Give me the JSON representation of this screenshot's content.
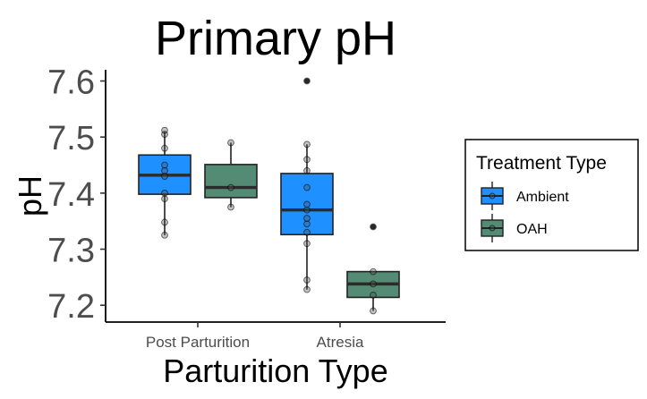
{
  "chart_data": {
    "type": "box",
    "title": "Primary pH",
    "xlabel": "Parturition Type",
    "ylabel": "pH",
    "categories": [
      "Post Parturition",
      "Atresia"
    ],
    "ylim": [
      7.17,
      7.62
    ],
    "yticks": [
      7.2,
      7.3,
      7.4,
      7.5,
      7.6
    ],
    "ytick_labels": [
      "7.2",
      "7.3",
      "7.4",
      "7.5",
      "7.6"
    ],
    "grid": false,
    "legend": {
      "title": "Treatment Type",
      "position": "right",
      "entries": [
        "Ambient",
        "OAH"
      ]
    },
    "series": [
      {
        "name": "Ambient",
        "color": "#1e90ff",
        "boxes": [
          {
            "category": "Post Parturition",
            "whisker_low": 7.325,
            "q1": 7.398,
            "median": 7.432,
            "q3": 7.468,
            "whisker_high": 7.51,
            "outliers": [],
            "points": [
              7.325,
              7.348,
              7.39,
              7.4,
              7.43,
              7.44,
              7.45,
              7.48,
              7.505,
              7.512
            ]
          },
          {
            "category": "Atresia",
            "whisker_low": 7.228,
            "q1": 7.326,
            "median": 7.37,
            "q3": 7.435,
            "whisker_high": 7.487,
            "outliers": [
              7.6
            ],
            "points": [
              7.228,
              7.245,
              7.31,
              7.33,
              7.345,
              7.355,
              7.37,
              7.38,
              7.41,
              7.44,
              7.46,
              7.487,
              7.6
            ]
          }
        ]
      },
      {
        "name": "OAH",
        "color": "#548b74",
        "boxes": [
          {
            "category": "Post Parturition",
            "whisker_low": 7.375,
            "q1": 7.392,
            "median": 7.41,
            "q3": 7.451,
            "whisker_high": 7.49,
            "outliers": [],
            "points": [
              7.375,
              7.41,
              7.49
            ]
          },
          {
            "category": "Atresia",
            "whisker_low": 7.19,
            "q1": 7.214,
            "median": 7.238,
            "q3": 7.26,
            "whisker_high": 7.26,
            "outliers": [
              7.34
            ],
            "points": [
              7.19,
              7.218,
              7.238,
              7.26,
              7.34
            ]
          }
        ]
      }
    ]
  }
}
